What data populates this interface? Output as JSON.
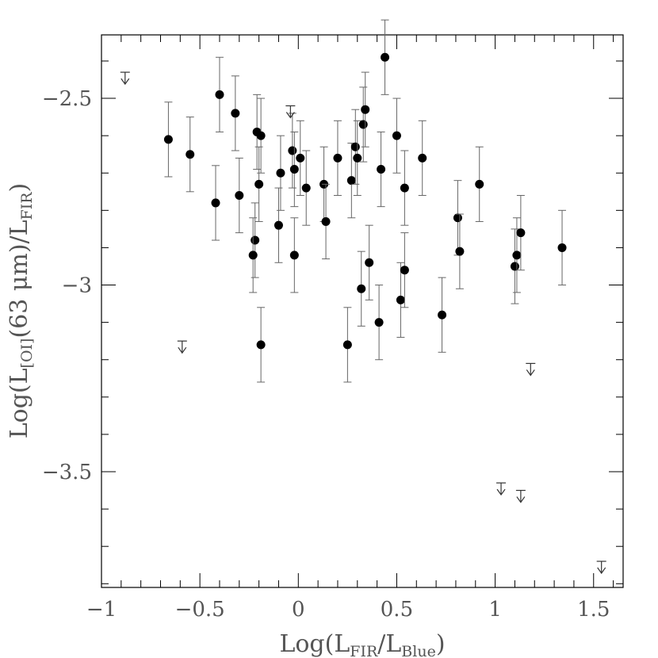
{
  "chart_data": {
    "type": "scatter",
    "xlim": [
      -1.0,
      1.65
    ],
    "ylim": [
      -3.81,
      -2.33
    ],
    "x_ticks": [
      -1,
      -0.5,
      0,
      0.5,
      1,
      1.5
    ],
    "x_tick_labels": [
      "−1",
      "−0.5",
      "0",
      "0.5",
      "1",
      "1.5"
    ],
    "y_ticks": [
      -2.5,
      -3.0,
      -3.5
    ],
    "y_tick_labels": [
      "−2.5",
      "−3",
      "−3.5"
    ],
    "xlabel": {
      "pre": "Log(L",
      "sub1": "FIR",
      "mid": "/L",
      "sub2": "Blue",
      "post": ")"
    },
    "ylabel": {
      "pre": "Log(L",
      "sub1": "[OI]",
      "mid": "(63 μm)/L",
      "sub2": "FIR",
      "post": ")"
    },
    "error_bar": 0.1,
    "detections": [
      {
        "x": -0.66,
        "y": -2.61
      },
      {
        "x": -0.55,
        "y": -2.65
      },
      {
        "x": -0.4,
        "y": -2.49
      },
      {
        "x": -0.32,
        "y": -2.54
      },
      {
        "x": -0.42,
        "y": -2.78
      },
      {
        "x": -0.3,
        "y": -2.76
      },
      {
        "x": -0.21,
        "y": -2.59
      },
      {
        "x": -0.19,
        "y": -2.6
      },
      {
        "x": -0.2,
        "y": -2.73
      },
      {
        "x": -0.22,
        "y": -2.88
      },
      {
        "x": -0.23,
        "y": -2.92
      },
      {
        "x": -0.19,
        "y": -3.16
      },
      {
        "x": -0.09,
        "y": -2.7
      },
      {
        "x": -0.1,
        "y": -2.84
      },
      {
        "x": -0.03,
        "y": -2.64
      },
      {
        "x": -0.02,
        "y": -2.69
      },
      {
        "x": -0.02,
        "y": -2.92
      },
      {
        "x": 0.01,
        "y": -2.66
      },
      {
        "x": 0.04,
        "y": -2.74
      },
      {
        "x": 0.13,
        "y": -2.73
      },
      {
        "x": 0.14,
        "y": -2.83
      },
      {
        "x": 0.2,
        "y": -2.66
      },
      {
        "x": 0.25,
        "y": -3.16
      },
      {
        "x": 0.27,
        "y": -2.72
      },
      {
        "x": 0.29,
        "y": -2.63
      },
      {
        "x": 0.3,
        "y": -2.66
      },
      {
        "x": 0.32,
        "y": -3.01
      },
      {
        "x": 0.33,
        "y": -2.57
      },
      {
        "x": 0.34,
        "y": -2.53
      },
      {
        "x": 0.36,
        "y": -2.94
      },
      {
        "x": 0.41,
        "y": -3.1
      },
      {
        "x": 0.42,
        "y": -2.69
      },
      {
        "x": 0.44,
        "y": -2.39
      },
      {
        "x": 0.5,
        "y": -2.6
      },
      {
        "x": 0.52,
        "y": -3.04
      },
      {
        "x": 0.54,
        "y": -2.96
      },
      {
        "x": 0.54,
        "y": -2.74
      },
      {
        "x": 0.63,
        "y": -2.66
      },
      {
        "x": 0.73,
        "y": -3.08
      },
      {
        "x": 0.81,
        "y": -2.82
      },
      {
        "x": 0.82,
        "y": -2.91
      },
      {
        "x": 0.92,
        "y": -2.73
      },
      {
        "x": 1.1,
        "y": -2.95
      },
      {
        "x": 1.11,
        "y": -2.92
      },
      {
        "x": 1.13,
        "y": -2.86
      },
      {
        "x": 1.34,
        "y": -2.9
      }
    ],
    "upper_limits": [
      {
        "x": -0.88,
        "y": -2.43
      },
      {
        "x": -0.59,
        "y": -3.15
      },
      {
        "x": -0.04,
        "y": -2.52
      },
      {
        "x": 1.18,
        "y": -3.21
      },
      {
        "x": 1.03,
        "y": -3.53
      },
      {
        "x": 1.13,
        "y": -3.55
      },
      {
        "x": 1.54,
        "y": -3.74
      }
    ]
  }
}
